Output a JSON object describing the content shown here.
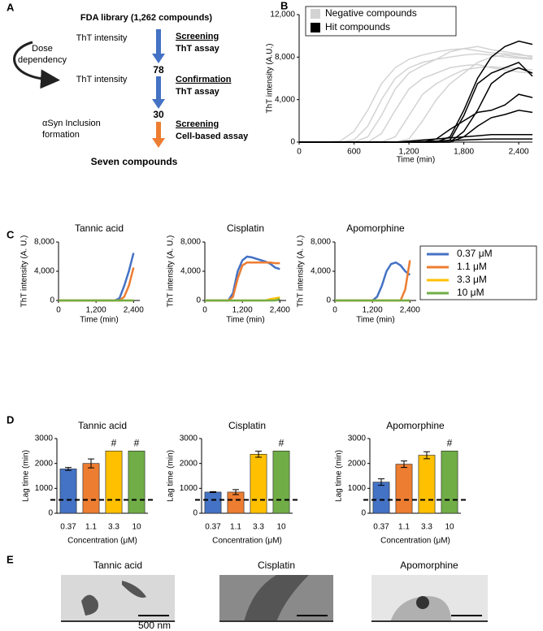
{
  "panel_labels": [
    "A",
    "B",
    "C",
    "D",
    "E"
  ],
  "flowchart": {
    "title": "FDA library (1,262 compounds)",
    "step1": {
      "measure": "ThT intensity",
      "stage": "Screening",
      "assay": "ThT assay"
    },
    "count1": 78,
    "dose_dependency": [
      "Dose",
      "dependency"
    ],
    "step2": {
      "measure": "ThT intensity",
      "stage": "Confirmation",
      "assay": "ThT assay"
    },
    "count2": 30,
    "step3": {
      "measure": [
        "αSyn Inclusion",
        "formation"
      ],
      "stage": "Screening",
      "assay": "Cell-based assay"
    },
    "result": "Seven compounds"
  },
  "chart_data": [
    {
      "type": "line",
      "xlabel": "Time (min)",
      "ylabel": "ThT intensity (A.U.)",
      "legend": "top-left",
      "x": [
        0,
        150,
        300,
        450,
        600,
        750,
        900,
        1050,
        1200,
        1350,
        1500,
        1650,
        1800,
        1950,
        2100,
        2250,
        2400,
        2550
      ],
      "xlim": [
        0,
        2550
      ],
      "xticks": [
        0,
        600,
        {
          "value": 1200,
          "label": "1,200"
        },
        {
          "value": 1800,
          "label": "1,800"
        },
        {
          "value": 2400,
          "label": "2,400"
        }
      ],
      "ylim": [
        0,
        12000
      ],
      "yticks": [
        0,
        {
          "value": 4000,
          "label": "4,000"
        },
        {
          "value": 8000,
          "label": "8,000"
        },
        {
          "value": 12000,
          "label": "12,000"
        }
      ],
      "groups": [
        {
          "name": "Negative compounds",
          "color": "#d3d3d3",
          "lines": [
            [
              0,
              0,
              0,
              0,
              200,
              1500,
              4000,
              6000,
              7000,
              7500,
              7800,
              8000,
              8200,
              8300,
              8200,
              8000,
              7900,
              7800
            ],
            [
              0,
              0,
              0,
              0,
              0,
              500,
              2500,
              5000,
              6500,
              7200,
              7800,
              8500,
              8800,
              9000,
              8700,
              8500,
              8300,
              8000
            ],
            [
              0,
              0,
              0,
              0,
              0,
              0,
              800,
              3000,
              5000,
              6000,
              6500,
              7000,
              7200,
              7300,
              7000,
              6800,
              6600,
              6500
            ],
            [
              0,
              0,
              0,
              0,
              0,
              0,
              0,
              500,
              2500,
              4500,
              5500,
              6200,
              6800,
              7000,
              7100,
              7000,
              6900,
              6800
            ],
            [
              0,
              0,
              0,
              0,
              0,
              0,
              0,
              0,
              300,
              2000,
              4000,
              5500,
              6500,
              7500,
              8000,
              8200,
              8000,
              7900
            ],
            [
              0,
              0,
              0,
              100,
              1000,
              3000,
              5500,
              7000,
              7800,
              8200,
              8500,
              8700,
              8800,
              8600,
              8400,
              8300,
              8200,
              8100
            ]
          ]
        },
        {
          "name": "Hit compounds",
          "color": "#000000",
          "lines": [
            [
              0,
              0,
              0,
              0,
              0,
              0,
              0,
              0,
              0,
              0,
              0,
              500,
              3000,
              6000,
              8000,
              9000,
              9500,
              9200
            ],
            [
              0,
              0,
              0,
              0,
              0,
              0,
              0,
              0,
              0,
              0,
              0,
              200,
              2500,
              5500,
              6500,
              7000,
              7500,
              6200
            ],
            [
              0,
              0,
              0,
              0,
              0,
              0,
              0,
              0,
              0,
              0,
              0,
              0,
              1000,
              3000,
              5500,
              6500,
              7000,
              6500
            ],
            [
              0,
              0,
              0,
              0,
              0,
              0,
              0,
              0,
              0,
              0,
              300,
              1200,
              2000,
              2800,
              3000,
              3500,
              4500,
              4200
            ],
            [
              0,
              0,
              0,
              0,
              0,
              0,
              0,
              0,
              0,
              0,
              0,
              0,
              500,
              1500,
              2300,
              2600,
              3000,
              2800
            ],
            [
              0,
              0,
              0,
              0,
              0,
              0,
              0,
              0,
              100,
              200,
              300,
              400,
              500,
              600,
              700,
              700,
              700,
              700
            ],
            [
              0,
              0,
              0,
              0,
              0,
              0,
              0,
              0,
              0,
              50,
              100,
              150,
              200,
              250,
              300,
              300,
              300,
              300
            ]
          ]
        }
      ]
    },
    {
      "type": "line-panels",
      "xlabel": "Time (min)",
      "ylabel": "ThT intensity (A. U.)",
      "x": [
        0,
        150,
        300,
        450,
        600,
        750,
        900,
        1050,
        1200,
        1350,
        1500,
        1650,
        1800,
        1950,
        2100,
        2250,
        2400
      ],
      "xlim": [
        0,
        2600
      ],
      "xticks": [
        0,
        {
          "value": 1200,
          "label": "1,200"
        },
        {
          "value": 2400,
          "label": "2,400"
        }
      ],
      "ylim": [
        0,
        8000
      ],
      "yticks": [
        0,
        {
          "value": 4000,
          "label": "4,000"
        },
        {
          "value": 8000,
          "label": "8,000"
        }
      ],
      "legend": [
        {
          "name": "0.37 μM",
          "color": "#4472c4"
        },
        {
          "name": "1.1 μM",
          "color": "#ed7d31"
        },
        {
          "name": "3.3 μM",
          "color": "#ffc000"
        },
        {
          "name": "10 μM",
          "color": "#70ad47"
        }
      ],
      "panels": [
        {
          "title": "Tannic acid",
          "series": [
            [
              0,
              0,
              0,
              0,
              0,
              0,
              0,
              0,
              0,
              0,
              0,
              0,
              0,
              300,
              2000,
              4000,
              6500
            ],
            [
              0,
              0,
              0,
              0,
              0,
              0,
              0,
              0,
              0,
              0,
              0,
              0,
              0,
              0,
              500,
              2000,
              4500
            ],
            [
              0,
              0,
              0,
              0,
              0,
              0,
              0,
              0,
              0,
              0,
              0,
              0,
              0,
              0,
              0,
              0,
              0
            ],
            [
              0,
              0,
              0,
              0,
              0,
              0,
              0,
              0,
              0,
              0,
              0,
              0,
              0,
              0,
              0,
              0,
              0
            ]
          ]
        },
        {
          "title": "Cisplatin",
          "series": [
            [
              0,
              0,
              0,
              0,
              0,
              0,
              1000,
              4000,
              5500,
              6000,
              5900,
              5700,
              5500,
              5300,
              5000,
              4500,
              4300
            ],
            [
              0,
              0,
              0,
              0,
              0,
              0,
              500,
              3000,
              4800,
              5200,
              5200,
              5200,
              5200,
              5200,
              5200,
              5100,
              5100
            ],
            [
              0,
              0,
              0,
              0,
              0,
              0,
              0,
              0,
              0,
              0,
              0,
              0,
              0,
              0,
              200,
              300,
              400
            ],
            [
              0,
              0,
              0,
              0,
              0,
              0,
              0,
              0,
              0,
              0,
              0,
              0,
              0,
              0,
              0,
              0,
              200
            ]
          ]
        },
        {
          "title": "Apomorphine",
          "series": [
            [
              0,
              0,
              0,
              0,
              0,
              0,
              0,
              0,
              0,
              500,
              2000,
              4000,
              5000,
              5200,
              4800,
              4000,
              3500
            ],
            [
              0,
              0,
              0,
              0,
              0,
              0,
              0,
              0,
              0,
              0,
              0,
              0,
              0,
              0,
              0,
              1500,
              5500
            ],
            [
              0,
              0,
              0,
              0,
              0,
              0,
              0,
              0,
              0,
              0,
              0,
              0,
              0,
              0,
              0,
              0,
              0
            ],
            [
              0,
              0,
              0,
              0,
              0,
              0,
              0,
              0,
              0,
              0,
              0,
              0,
              0,
              0,
              0,
              0,
              0
            ]
          ]
        }
      ]
    },
    {
      "type": "bar-panels",
      "xlabel": "Concentration (μM)",
      "ylabel": "Lag time (min)",
      "categories": [
        "0.37",
        "1.1",
        "3.3",
        "10"
      ],
      "colors": [
        "#4472c4",
        "#ed7d31",
        "#ffc000",
        "#70ad47"
      ],
      "ylim": [
        0,
        3000
      ],
      "yticks": [
        0,
        1000,
        2000,
        3000
      ],
      "reference_line": 540,
      "panels": [
        {
          "title": "Tannic acid",
          "values": [
            1780,
            2000,
            2500,
            2500
          ],
          "errors": [
            60,
            180,
            null,
            null
          ],
          "annotations": [
            null,
            null,
            "#",
            "#"
          ]
        },
        {
          "title": "Cisplatin",
          "values": [
            850,
            850,
            2370,
            2500
          ],
          "errors": [
            20,
            100,
            120,
            null
          ],
          "annotations": [
            null,
            null,
            null,
            "#"
          ]
        },
        {
          "title": "Apomorphine",
          "values": [
            1250,
            1970,
            2330,
            2500
          ],
          "errors": [
            130,
            130,
            140,
            null
          ],
          "annotations": [
            null,
            null,
            null,
            "#"
          ]
        }
      ]
    }
  ],
  "micrographs": {
    "titles": [
      "Tannic acid",
      "Cisplatin",
      "Apomorphine"
    ],
    "scale_bar": "500 nm"
  }
}
